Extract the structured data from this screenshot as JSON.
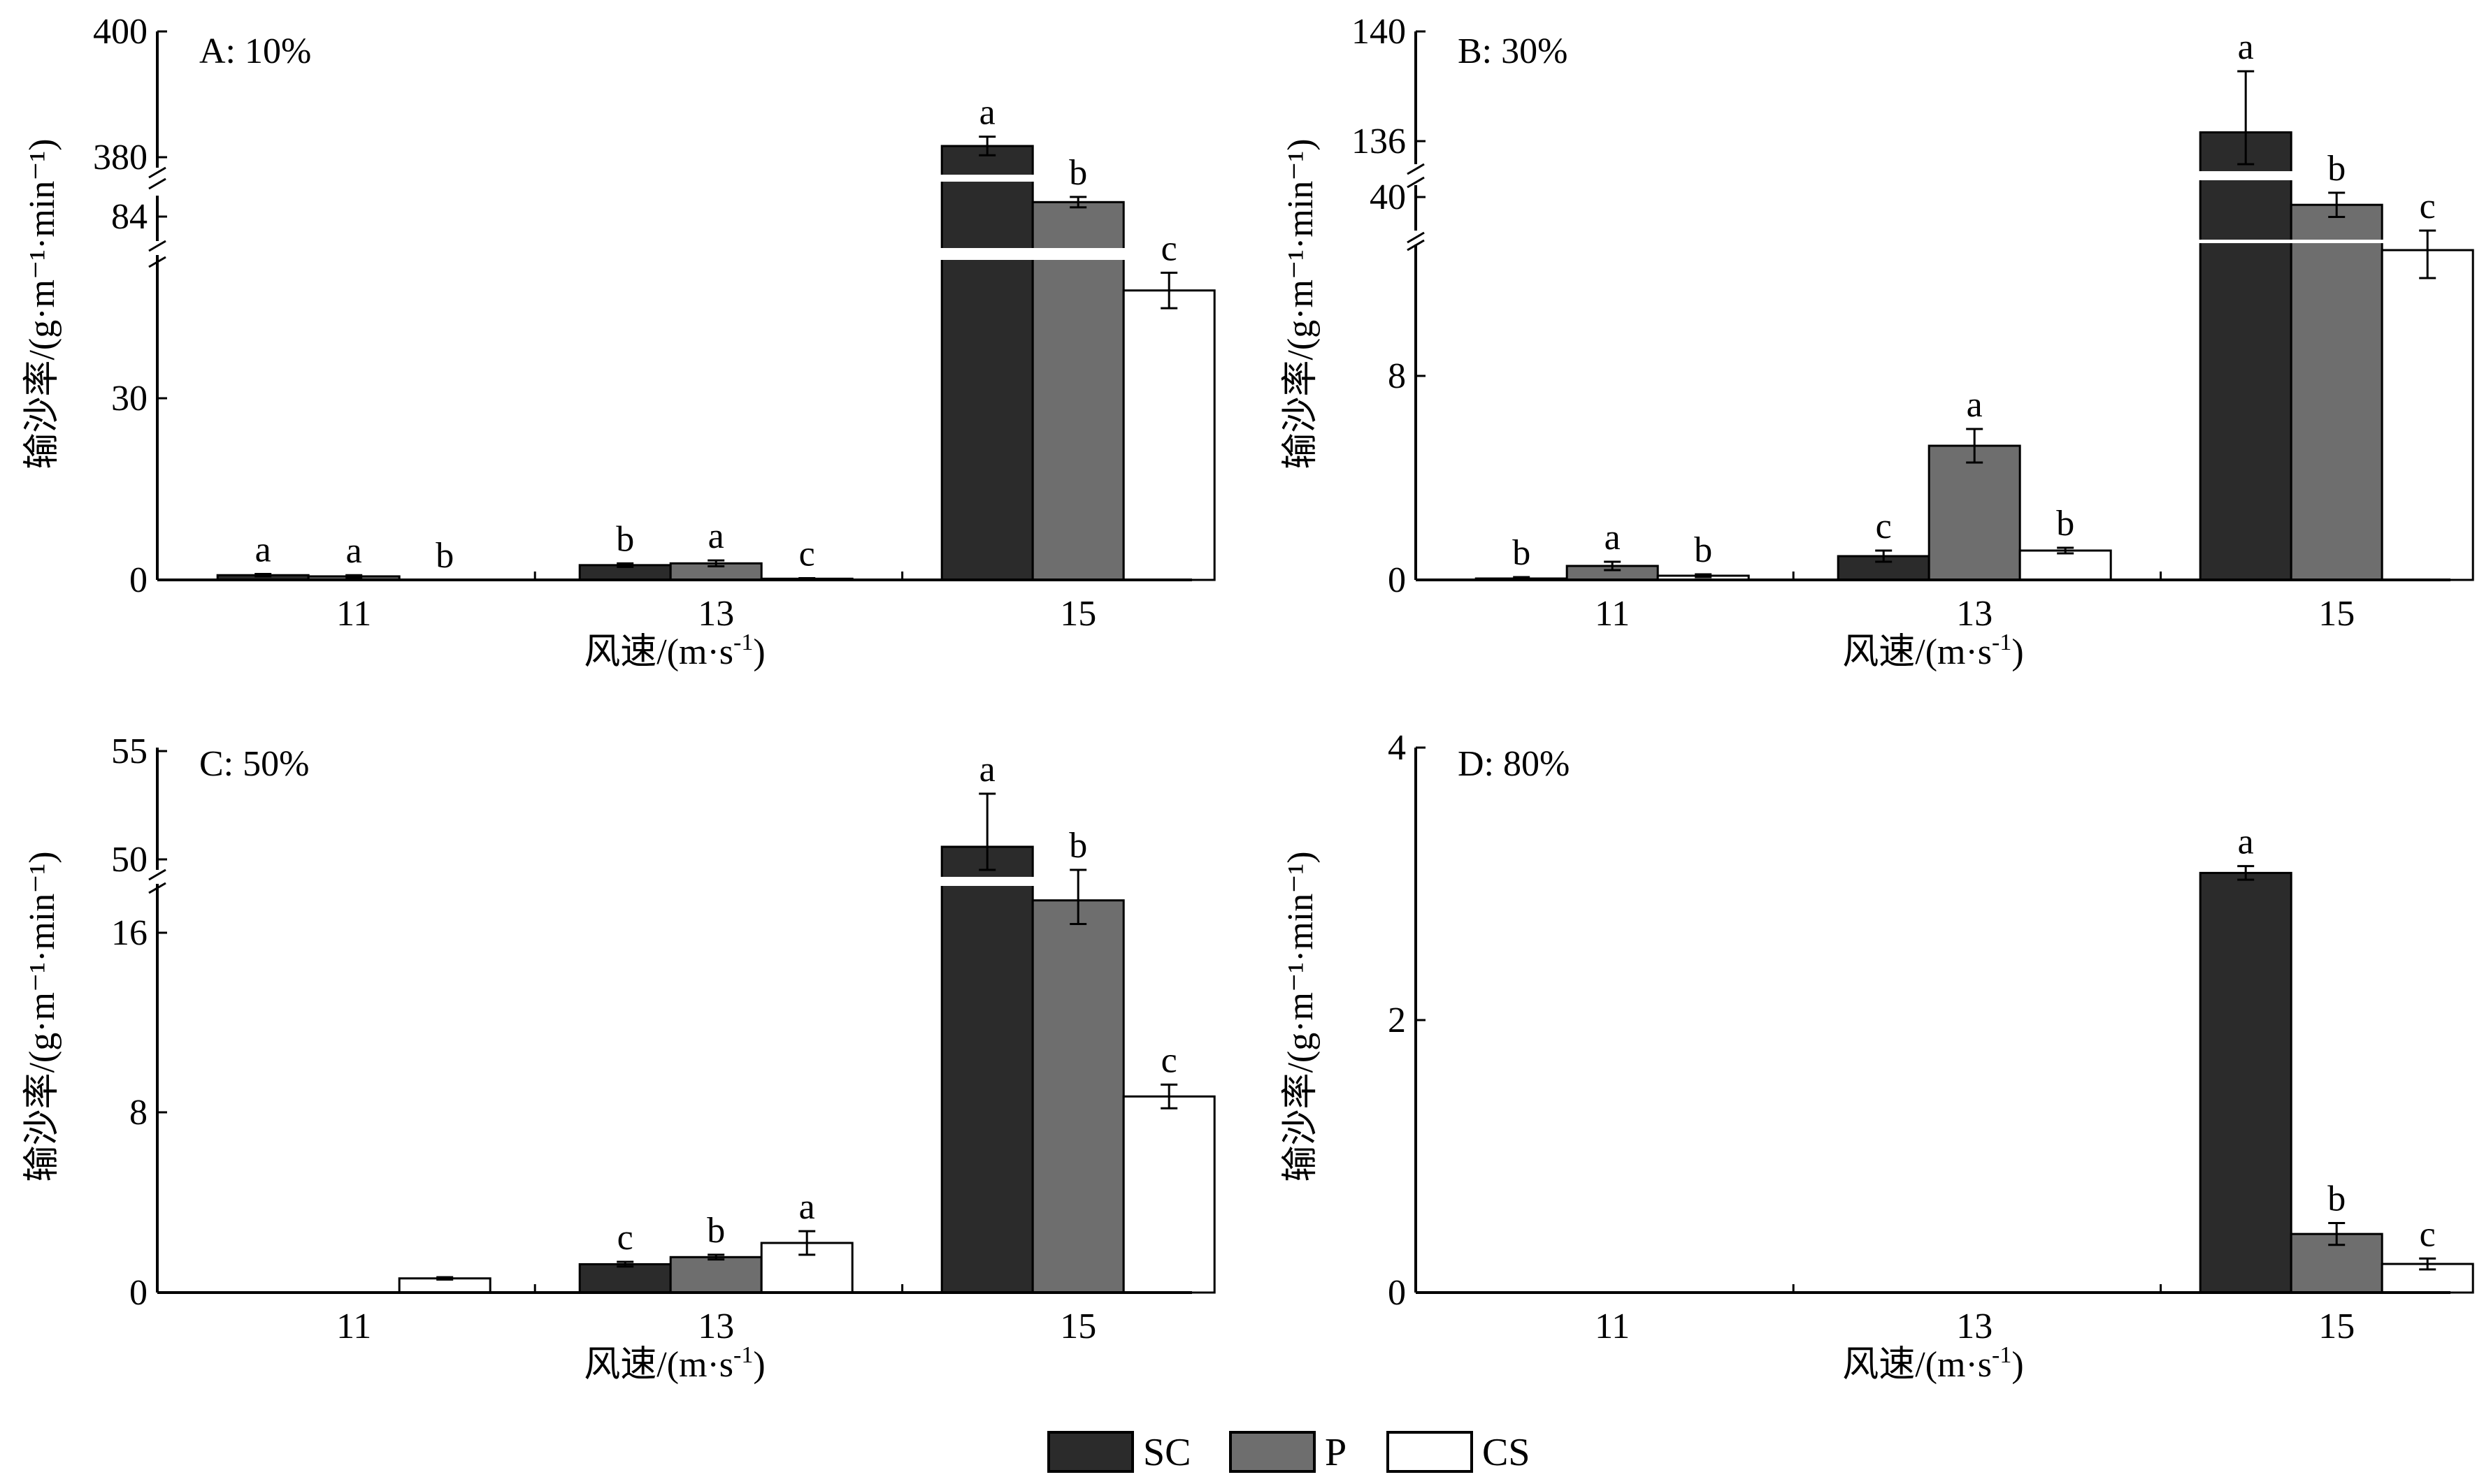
{
  "colors": {
    "SC": "#2b2b2b",
    "P": "#6e6e6e",
    "CS": "#ffffff",
    "axis": "#000000"
  },
  "legend": {
    "items": [
      {
        "key": "SC",
        "label": "SC"
      },
      {
        "key": "P",
        "label": "P"
      },
      {
        "key": "CS",
        "label": "CS"
      }
    ]
  },
  "chart_data": [
    {
      "type": "bar",
      "panel_label": "A: 10%",
      "categories": [
        "11",
        "13",
        "15"
      ],
      "xlabel_main": "风速/(m·s",
      "xlabel_sup": "-1",
      "xlabel_end": ")",
      "ylabel": "输沙率/(g·m⁻¹·min⁻¹)",
      "broken_axis": true,
      "axis_segments": [
        {
          "range": [
            0,
            55
          ],
          "ticks": [
            "0",
            "30"
          ]
        },
        {
          "range": [
            78,
            85
          ],
          "ticks": [
            "84"
          ]
        },
        {
          "range": [
            378,
            400
          ],
          "ticks": [
            "380",
            "400"
          ]
        }
      ],
      "series": [
        {
          "name": "SC",
          "values": [
            0.8,
            2.5,
            381.5
          ],
          "errors": [
            0.2,
            0.3,
            1.5
          ],
          "letters": [
            "a",
            "b",
            "a"
          ]
        },
        {
          "name": "P",
          "values": [
            0.6,
            2.8,
            84.0
          ],
          "errors": [
            0.2,
            0.5,
            0.8
          ],
          "letters": [
            "a",
            "a",
            "b"
          ]
        },
        {
          "name": "CS",
          "values": [
            0.0,
            0.2,
            49.0
          ],
          "errors": [
            0.0,
            0.1,
            3.0
          ],
          "letters": [
            "b",
            "c",
            "c"
          ]
        }
      ]
    },
    {
      "type": "bar",
      "panel_label": "B: 30%",
      "categories": [
        "11",
        "13",
        "15"
      ],
      "xlabel_main": "风速/(m·s",
      "xlabel_sup": "-1",
      "xlabel_end": ")",
      "ylabel": "输沙率/(g·m⁻¹·min⁻¹)",
      "broken_axis": true,
      "axis_segments": [
        {
          "range": [
            0,
            12
          ],
          "ticks": [
            "0",
            "8"
          ]
        },
        {
          "range": [
            38,
            41
          ],
          "ticks": [
            "40"
          ]
        },
        {
          "range": [
            135,
            140
          ],
          "ticks": [
            "136",
            "140"
          ]
        }
      ],
      "series": [
        {
          "name": "SC",
          "values": [
            0.05,
            0.85,
            136.2
          ],
          "errors": [
            0.05,
            0.2,
            2.3
          ],
          "letters": [
            "b",
            "c",
            "a"
          ]
        },
        {
          "name": "P",
          "values": [
            0.5,
            4.8,
            39.7
          ],
          "errors": [
            0.15,
            0.6,
            0.8
          ],
          "letters": [
            "a",
            "a",
            "b"
          ]
        },
        {
          "name": "CS",
          "values": [
            0.15,
            1.05,
            11.8
          ],
          "errors": [
            0.05,
            0.1,
            1.0
          ],
          "letters": [
            "b",
            "b",
            "c"
          ]
        }
      ]
    },
    {
      "type": "bar",
      "panel_label": "C: 50%",
      "categories": [
        "11",
        "13",
        "15"
      ],
      "xlabel_main": "风速/(m·s",
      "xlabel_sup": "-1",
      "xlabel_end": ")",
      "ylabel": "输沙率/(g·m⁻¹·min⁻¹)",
      "broken_axis": true,
      "axis_segments": [
        {
          "range": [
            0,
            17.3
          ],
          "ticks": [
            "0",
            "8",
            "16"
          ]
        },
        {
          "range": [
            49.7,
            55
          ],
          "ticks": [
            "50",
            "55"
          ]
        }
      ],
      "series": [
        {
          "name": "SC",
          "values": [
            0.0,
            1.2,
            50.7
          ],
          "errors": [
            0.0,
            0.1,
            2.3
          ],
          "letters": [
            "",
            "c",
            "a"
          ]
        },
        {
          "name": "P",
          "values": [
            0.0,
            1.5,
            16.6
          ],
          "errors": [
            0.0,
            0.1,
            1.0
          ],
          "letters": [
            "",
            "b",
            "b"
          ]
        },
        {
          "name": "CS",
          "values": [
            0.6,
            2.1,
            8.3
          ],
          "errors": [
            0.05,
            0.5,
            0.5
          ],
          "letters": [
            "",
            "a",
            "c"
          ]
        }
      ]
    },
    {
      "type": "bar",
      "panel_label": "D: 80%",
      "categories": [
        "11",
        "13",
        "15"
      ],
      "xlabel_main": "风速/(m·s",
      "xlabel_sup": "-1",
      "xlabel_end": ")",
      "ylabel": "输沙率/(g·m⁻¹·min⁻¹)",
      "broken_axis": false,
      "axis_segments": [
        {
          "range": [
            0,
            4
          ],
          "ticks": [
            "0",
            "2",
            "4"
          ]
        }
      ],
      "series": [
        {
          "name": "SC",
          "values": [
            0.0,
            0.0,
            3.08
          ],
          "errors": [
            0.0,
            0.0,
            0.05
          ],
          "letters": [
            "",
            "",
            "a"
          ]
        },
        {
          "name": "P",
          "values": [
            0.0,
            0.0,
            0.43
          ],
          "errors": [
            0.0,
            0.0,
            0.08
          ],
          "letters": [
            "",
            "",
            "b"
          ]
        },
        {
          "name": "CS",
          "values": [
            0.0,
            0.0,
            0.21
          ],
          "errors": [
            0.0,
            0.0,
            0.04
          ],
          "letters": [
            "",
            "",
            "c"
          ]
        }
      ]
    }
  ]
}
